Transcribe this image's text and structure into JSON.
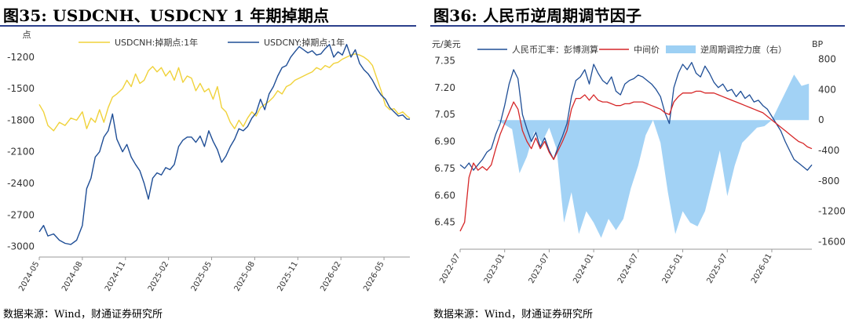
{
  "left": {
    "title": "图35: USDCNH、USDCNY 1 年期掉期点",
    "source": "数据来源：Wind，财通证券研究所",
    "chart_data": {
      "type": "line",
      "ylabel": "点",
      "ylim": [
        -3100,
        -1000
      ],
      "yticks": [
        -1200,
        -1500,
        -1800,
        -2100,
        -2400,
        -2700,
        -3000
      ],
      "xticks": [
        "2024-05",
        "2024-08",
        "2024-11",
        "2025-02",
        "2025-05",
        "2025-08",
        "2025-11",
        "2026-02",
        "2026-05"
      ],
      "series": [
        {
          "name": "USDCNH:掉期点:1年",
          "color": "#f0d23a",
          "x": [
            0,
            0.3,
            0.6,
            1.0,
            1.4,
            1.8,
            2.2,
            2.6,
            3.0,
            3.3,
            3.6,
            3.9,
            4.2,
            4.5,
            4.8,
            5.1,
            5.4,
            5.8,
            6.1,
            6.4,
            6.7,
            7.0,
            7.3,
            7.6,
            7.9,
            8.2,
            8.5,
            8.8,
            9.1,
            9.4,
            9.7,
            10.0,
            10.3,
            10.6,
            10.9,
            11.2,
            11.5,
            11.8,
            12.1,
            12.4,
            12.7,
            13.0,
            13.3,
            13.6,
            13.9,
            14.2,
            14.5,
            14.8,
            15.1,
            15.4,
            15.7,
            16.0,
            16.3,
            16.6,
            16.9,
            17.2,
            17.5,
            17.8,
            18.1,
            18.4,
            18.7,
            19.0,
            19.3,
            19.6,
            19.9,
            20.2,
            20.5,
            20.8,
            21.1,
            21.4,
            21.7,
            22.0,
            22.3,
            22.6,
            22.9,
            23.2,
            23.5,
            23.8,
            24.1,
            24.4,
            24.7,
            25.0,
            25.3,
            25.6,
            25.8
          ],
          "y": [
            -1650,
            -1720,
            -1850,
            -1900,
            -1820,
            -1850,
            -1780,
            -1800,
            -1720,
            -1880,
            -1780,
            -1820,
            -1700,
            -1820,
            -1680,
            -1580,
            -1550,
            -1500,
            -1420,
            -1480,
            -1360,
            -1450,
            -1420,
            -1330,
            -1290,
            -1340,
            -1300,
            -1380,
            -1330,
            -1420,
            -1300,
            -1440,
            -1380,
            -1400,
            -1520,
            -1450,
            -1530,
            -1500,
            -1600,
            -1480,
            -1680,
            -1720,
            -1820,
            -1880,
            -1800,
            -1860,
            -1780,
            -1720,
            -1760,
            -1680,
            -1650,
            -1620,
            -1580,
            -1520,
            -1550,
            -1480,
            -1460,
            -1420,
            -1400,
            -1380,
            -1360,
            -1340,
            -1300,
            -1320,
            -1280,
            -1300,
            -1260,
            -1250,
            -1220,
            -1200,
            -1180,
            -1170,
            -1180,
            -1200,
            -1230,
            -1280,
            -1400,
            -1520,
            -1660,
            -1700,
            -1690,
            -1740,
            -1720,
            -1760,
            -1780
          ]
        },
        {
          "name": "USDCNY:掉期点:1年",
          "color": "#1f4e96",
          "x": [
            0,
            0.3,
            0.6,
            1.0,
            1.4,
            1.8,
            2.2,
            2.6,
            3.0,
            3.3,
            3.6,
            3.9,
            4.2,
            4.5,
            4.8,
            5.1,
            5.4,
            5.8,
            6.1,
            6.4,
            6.7,
            7.0,
            7.3,
            7.6,
            7.9,
            8.2,
            8.5,
            8.8,
            9.1,
            9.4,
            9.7,
            10.0,
            10.3,
            10.6,
            10.9,
            11.2,
            11.5,
            11.8,
            12.1,
            12.4,
            12.7,
            13.0,
            13.3,
            13.6,
            13.9,
            14.2,
            14.5,
            14.8,
            15.1,
            15.4,
            15.7,
            16.0,
            16.3,
            16.6,
            16.9,
            17.2,
            17.5,
            17.8,
            18.1,
            18.4,
            18.7,
            19.0,
            19.3,
            19.6,
            19.9,
            20.2,
            20.5,
            20.8,
            21.1,
            21.4,
            21.7,
            22.0,
            22.3,
            22.6,
            22.9,
            23.2,
            23.5,
            23.8,
            24.1,
            24.4,
            24.7,
            25.0,
            25.3,
            25.6,
            25.8
          ],
          "y": [
            -2860,
            -2800,
            -2900,
            -2880,
            -2940,
            -2970,
            -2980,
            -2940,
            -2800,
            -2450,
            -2350,
            -2150,
            -2100,
            -1960,
            -1900,
            -1740,
            -1980,
            -2100,
            -2030,
            -2150,
            -2220,
            -2280,
            -2400,
            -2550,
            -2350,
            -2300,
            -2320,
            -2250,
            -2270,
            -2220,
            -2050,
            -1990,
            -1960,
            -1960,
            -2010,
            -1950,
            -2050,
            -1900,
            -2000,
            -2080,
            -2200,
            -2140,
            -2050,
            -1980,
            -1880,
            -1900,
            -1860,
            -1780,
            -1730,
            -1600,
            -1700,
            -1550,
            -1480,
            -1380,
            -1300,
            -1280,
            -1200,
            -1150,
            -1100,
            -1130,
            -1160,
            -1140,
            -1180,
            -1170,
            -1120,
            -1080,
            -1200,
            -1150,
            -1180,
            -1080,
            -1200,
            -1130,
            -1260,
            -1320,
            -1360,
            -1420,
            -1500,
            -1560,
            -1600,
            -1680,
            -1720,
            -1760,
            -1750,
            -1790,
            -1790
          ]
        }
      ],
      "legend": "top"
    }
  },
  "right": {
    "title": "图36: 人民币逆周期调节因子",
    "source": "数据来源：Wind，财通证券研究所",
    "chart_data": {
      "type": "line",
      "ylabel_left": "元/美元",
      "ylabel_right": "BP",
      "ylim_left": [
        6.3,
        7.4
      ],
      "yticks_left": [
        "7.35",
        "7.20",
        "7.05",
        "6.90",
        "6.75",
        "6.60",
        "6.45"
      ],
      "ylim_right": [
        -1700,
        900
      ],
      "yticks_right": [
        "800",
        "400",
        "0",
        "-400",
        "-800",
        "-1200",
        "-1600"
      ],
      "xticks": [
        "2022-07",
        "2023-01",
        "2023-07",
        "2024-01",
        "2024-07",
        "2025-01",
        "2025-07",
        "2026-01"
      ],
      "series": [
        {
          "name": "人民币汇率：彭博测算",
          "color": "#1f4e96",
          "axis": "left",
          "x": [
            0,
            0.6,
            1.2,
            1.8,
            2.4,
            3.0,
            3.6,
            4.2,
            4.8,
            5.4,
            6.0,
            6.6,
            7.2,
            7.8,
            8.4,
            9.0,
            9.6,
            10.2,
            10.8,
            11.4,
            12.0,
            12.6,
            13.2,
            13.8,
            14.4,
            15.0,
            15.6,
            16.2,
            16.8,
            17.4,
            18.0,
            18.6,
            19.2,
            19.8,
            20.4,
            21.0,
            21.6,
            22.2,
            22.8,
            23.4,
            24.0,
            24.6,
            25.2,
            25.8,
            26.4,
            27.0,
            27.6,
            28.2,
            28.8,
            29.4,
            30.0,
            30.6,
            31.2,
            31.8,
            32.4,
            33.0,
            33.6,
            34.2,
            34.8,
            35.4,
            36.0,
            36.6,
            37.2,
            37.8,
            38.4,
            39.0,
            39.6,
            40.2,
            40.8,
            41.4,
            42.0,
            42.6,
            43.2,
            43.8,
            44.4,
            45.0,
            45.6,
            46.2,
            46.8,
            47.4
          ],
          "y": [
            6.77,
            6.75,
            6.78,
            6.74,
            6.77,
            6.8,
            6.84,
            6.86,
            6.94,
            7.0,
            7.1,
            7.22,
            7.3,
            7.25,
            7.05,
            6.97,
            6.9,
            6.95,
            6.87,
            6.92,
            6.85,
            6.8,
            6.87,
            6.93,
            7.0,
            7.15,
            7.24,
            7.26,
            7.3,
            7.22,
            7.33,
            7.28,
            7.24,
            7.22,
            7.26,
            7.18,
            7.16,
            7.22,
            7.24,
            7.25,
            7.27,
            7.26,
            7.24,
            7.22,
            7.19,
            7.15,
            7.06,
            7.0,
            7.2,
            7.28,
            7.33,
            7.3,
            7.34,
            7.28,
            7.26,
            7.32,
            7.28,
            7.23,
            7.2,
            7.22,
            7.18,
            7.19,
            7.15,
            7.18,
            7.14,
            7.16,
            7.12,
            7.13,
            7.1,
            7.08,
            7.04,
            7.0,
            6.96,
            6.9,
            6.85,
            6.8,
            6.78,
            6.76,
            6.74,
            6.77
          ]
        },
        {
          "name": "中间价",
          "color": "#d62728",
          "axis": "left",
          "x": [
            0,
            0.6,
            1.2,
            1.8,
            2.4,
            3.0,
            3.6,
            4.2,
            4.8,
            5.4,
            6.0,
            6.6,
            7.2,
            7.8,
            8.4,
            9.0,
            9.6,
            10.2,
            10.8,
            11.4,
            12.0,
            12.6,
            13.2,
            13.8,
            14.4,
            15.0,
            15.6,
            16.2,
            16.8,
            17.4,
            18.0,
            18.6,
            19.2,
            19.8,
            20.4,
            21.0,
            21.6,
            22.2,
            22.8,
            23.4,
            24.0,
            24.6,
            25.2,
            25.8,
            26.4,
            27.0,
            27.6,
            28.2,
            28.8,
            29.4,
            30.0,
            30.6,
            31.2,
            31.8,
            32.4,
            33.0,
            33.6,
            34.2,
            34.8,
            35.4,
            36.0,
            36.6,
            37.2,
            37.8,
            38.4,
            39.0,
            39.6,
            40.2,
            40.8,
            41.4,
            42.0,
            42.6,
            43.2,
            43.8,
            44.4,
            45.0,
            45.6,
            46.2,
            46.8,
            47.4
          ],
          "y": [
            6.4,
            6.45,
            6.7,
            6.78,
            6.74,
            6.76,
            6.74,
            6.77,
            6.86,
            6.94,
            7.0,
            7.06,
            7.12,
            7.08,
            6.96,
            6.9,
            6.86,
            6.92,
            6.86,
            6.9,
            6.84,
            6.8,
            6.85,
            6.9,
            6.96,
            7.08,
            7.14,
            7.14,
            7.16,
            7.13,
            7.16,
            7.13,
            7.12,
            7.12,
            7.11,
            7.1,
            7.1,
            7.11,
            7.11,
            7.12,
            7.12,
            7.12,
            7.11,
            7.1,
            7.09,
            7.08,
            7.06,
            7.05,
            7.12,
            7.15,
            7.17,
            7.17,
            7.17,
            7.18,
            7.18,
            7.17,
            7.17,
            7.17,
            7.16,
            7.15,
            7.14,
            7.13,
            7.12,
            7.11,
            7.1,
            7.09,
            7.08,
            7.07,
            7.06,
            7.04,
            7.02,
            7.0,
            6.98,
            6.96,
            6.94,
            6.92,
            6.9,
            6.89,
            6.87,
            6.86
          ]
        },
        {
          "name": "逆周期调控力度（右）",
          "color": "#9dd0f4",
          "axis": "right",
          "style": "area",
          "x": [
            0,
            1,
            2,
            3,
            4,
            5,
            6,
            7,
            8,
            9,
            10,
            11,
            12,
            13,
            14,
            15,
            16,
            17,
            18,
            19,
            20,
            21,
            22,
            23,
            24,
            25,
            26,
            27,
            28,
            29,
            30,
            31,
            32,
            33,
            34,
            35,
            36,
            37,
            38,
            39,
            40,
            41,
            42,
            43,
            44,
            45,
            46,
            47
          ],
          "y": [
            0,
            0,
            0,
            0,
            0,
            0,
            -60,
            -120,
            -700,
            -480,
            -150,
            -300,
            -100,
            -380,
            -1350,
            -950,
            -1500,
            -1200,
            -1350,
            -1550,
            -1300,
            -1450,
            -1300,
            -900,
            -600,
            -200,
            0,
            -300,
            -950,
            -1500,
            -1200,
            -1350,
            -1400,
            -1200,
            -800,
            -400,
            -1000,
            -600,
            -300,
            -200,
            -100,
            -80,
            0,
            200,
            400,
            600,
            450,
            480
          ]
        }
      ],
      "legend": "top"
    }
  }
}
